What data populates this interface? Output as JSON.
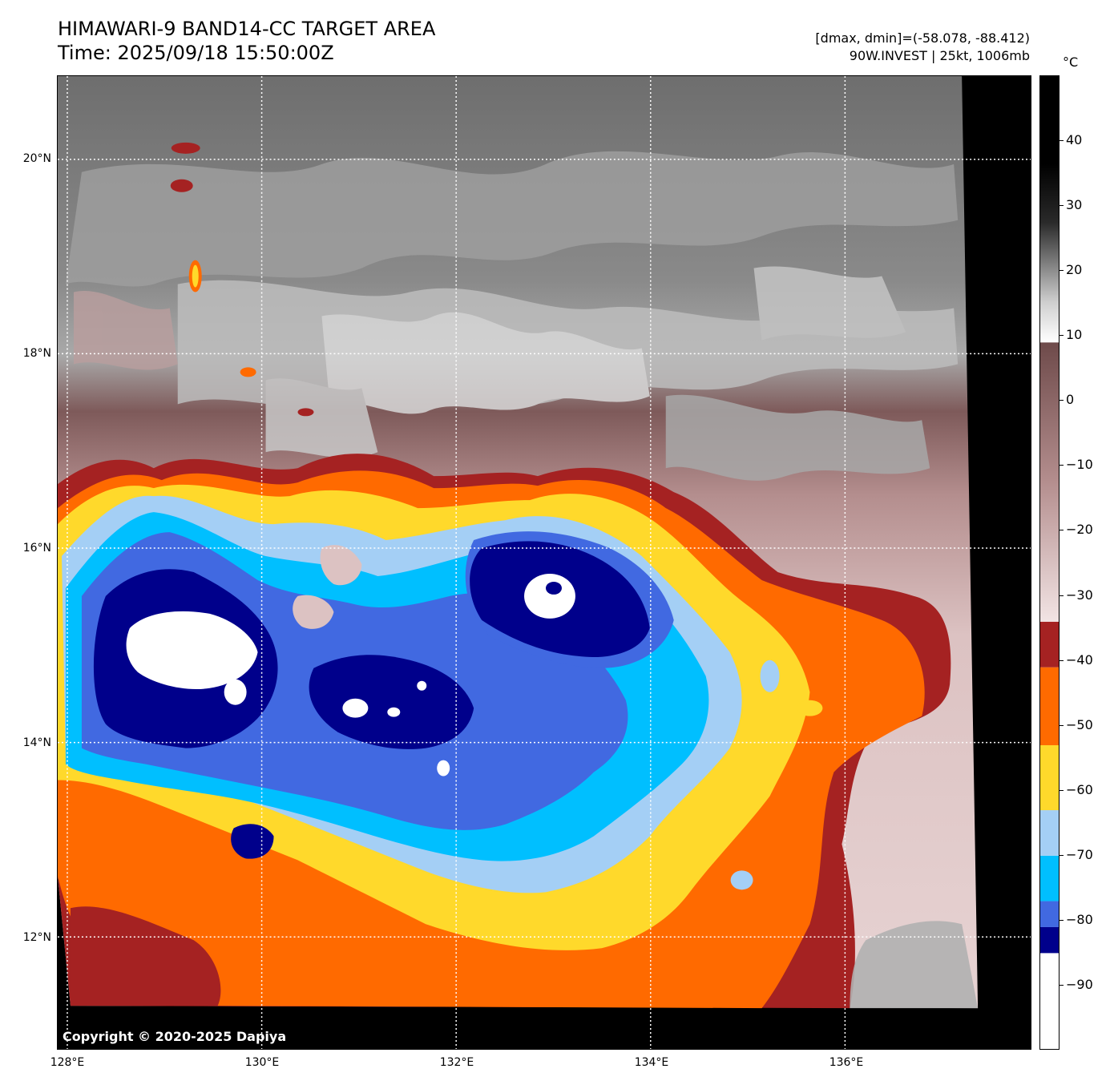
{
  "header": {
    "title_line1": "HIMAWARI-9 BAND14-CC TARGET AREA",
    "title_line2": "Time: 2025/09/18 15:50:00Z",
    "info_line1": "[dmax, dmin]=(-58.078, -88.412)",
    "info_line2": "90W.INVEST | 25kt, 1006mb"
  },
  "map": {
    "lat_labels": [
      "20°N",
      "18°N",
      "16°N",
      "14°N",
      "12°N"
    ],
    "lon_labels": [
      "128°E",
      "130°E",
      "132°E",
      "134°E",
      "136°E"
    ],
    "copyright": "Copyright © 2020-2025 Dapiya",
    "features": {
      "deep_convection_cores": 3,
      "coldest_tops_color": "#ffffff"
    }
  },
  "colorbar": {
    "unit": "°C",
    "tick_labels": [
      "40",
      "30",
      "20",
      "10",
      "0",
      "−10",
      "−20",
      "−30",
      "−40",
      "−50",
      "−60",
      "−70",
      "−80",
      "−90"
    ],
    "tick_values": [
      40,
      30,
      20,
      10,
      0,
      -10,
      -20,
      -30,
      -40,
      -50,
      -60,
      -70,
      -80,
      -90
    ],
    "range": [
      -100,
      50
    ],
    "bands": [
      {
        "from": -100,
        "to": -85,
        "color": "#ffffff"
      },
      {
        "from": -85,
        "to": -81,
        "color": "#00008b"
      },
      {
        "from": -81,
        "to": -77,
        "color": "#4169e1"
      },
      {
        "from": -77,
        "to": -70,
        "color": "#00bfff"
      },
      {
        "from": -70,
        "to": -63,
        "color": "#a4cff5"
      },
      {
        "from": -63,
        "to": -53,
        "color": "#ffd92b"
      },
      {
        "from": -53,
        "to": -41,
        "color": "#ff6a00"
      },
      {
        "from": -41,
        "to": -34,
        "color": "#a52222"
      }
    ]
  }
}
